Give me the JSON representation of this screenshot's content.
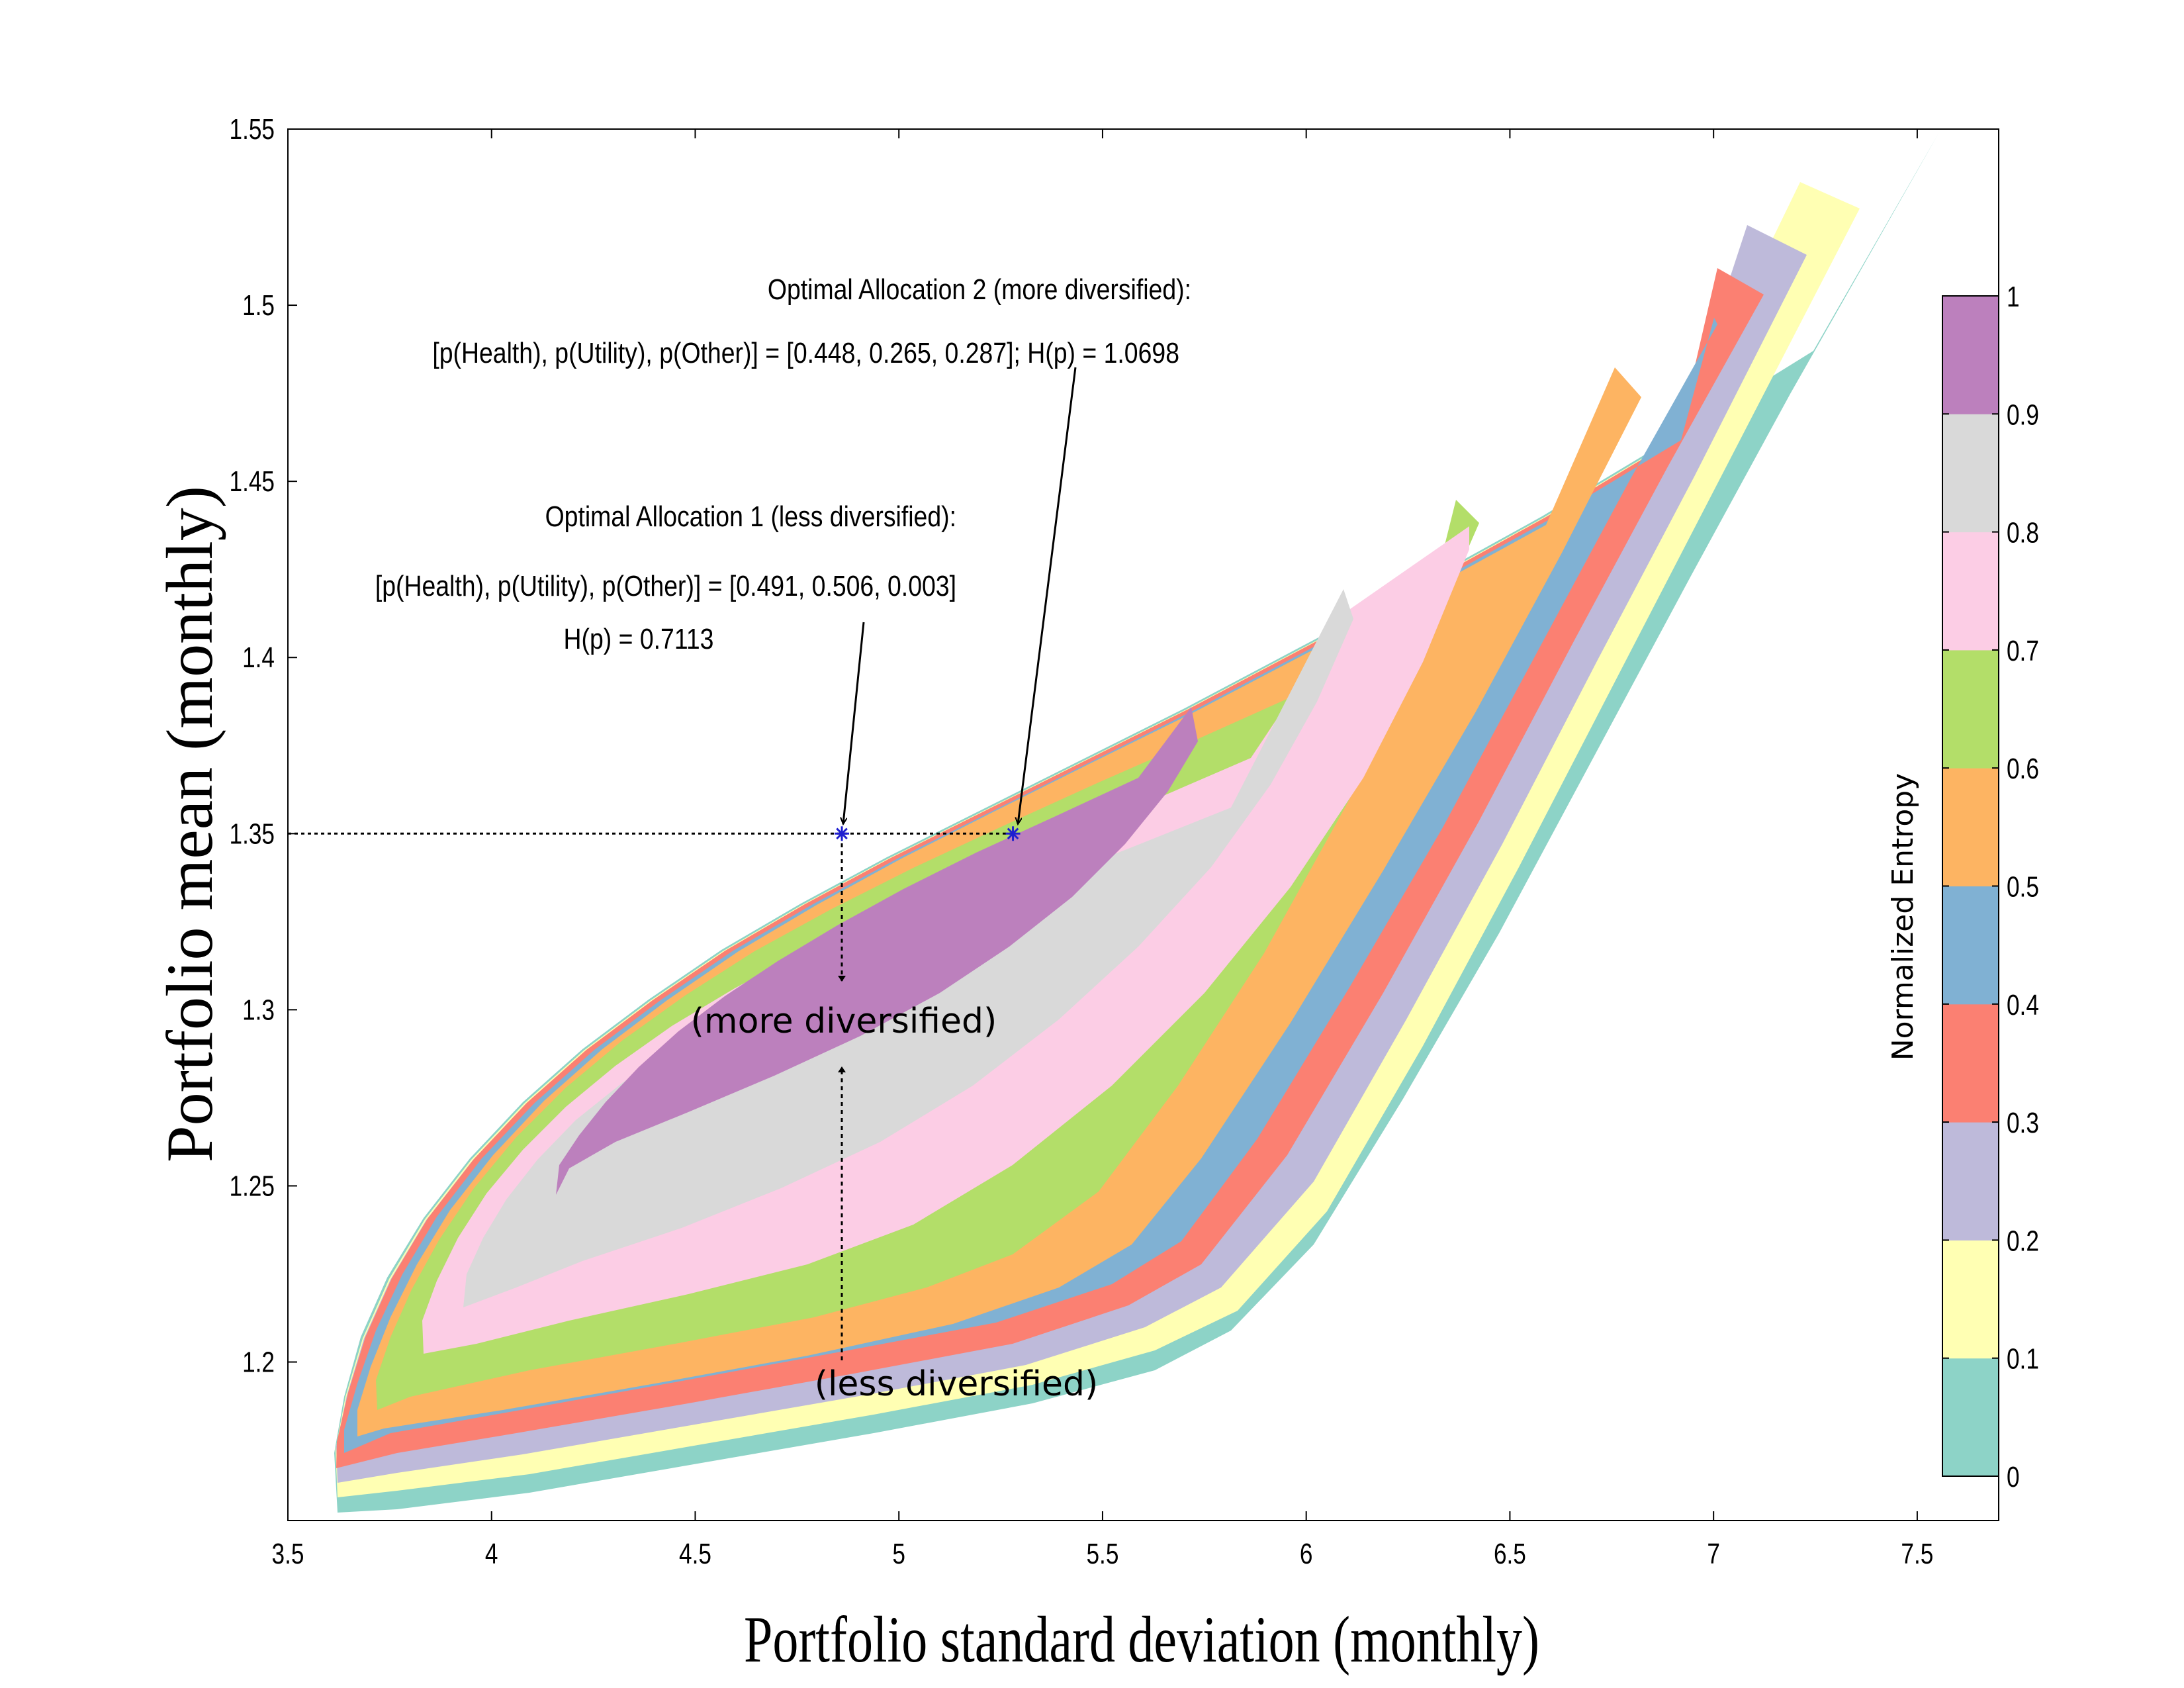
{
  "chart_data": {
    "type": "contour",
    "title": "",
    "xlabel": "Portfolio standard deviation (monthly)",
    "ylabel": "Portfolio mean (monthly)",
    "xlim": [
      3.5,
      7.7
    ],
    "ylim": [
      1.155,
      1.55
    ],
    "x_ticks": [
      "3.5",
      "4",
      "4.5",
      "5",
      "5.5",
      "6",
      "6.5",
      "7",
      "7.5"
    ],
    "y_ticks": [
      "1.2",
      "1.25",
      "1.3",
      "1.35",
      "1.4",
      "1.45",
      "1.5",
      "1.55"
    ],
    "colorbar": {
      "label": "Normalized Entropy",
      "ticks": [
        "0",
        "0.1",
        "0.2",
        "0.3",
        "0.4",
        "0.5",
        "0.6",
        "0.7",
        "0.8",
        "0.9",
        "1"
      ],
      "colors": [
        "#8dd3c7",
        "#ffffb3",
        "#bebada",
        "#fb8072",
        "#80b1d3",
        "#fdb462",
        "#b3de69",
        "#fccde5",
        "#d9d9d9",
        "#bc80bd"
      ]
    },
    "points": [
      {
        "name": "Optimal Allocation 1",
        "x": 4.86,
        "y": 1.35
      },
      {
        "name": "Optimal Allocation 2",
        "x": 5.28,
        "y": 1.35
      }
    ],
    "reference_line": {
      "y": 1.35,
      "x_from": 3.5,
      "x_to": 5.28
    },
    "annotations": {
      "alloc2_title": "Optimal Allocation 2 (more diversified):",
      "alloc2_detail": "[p(Health), p(Utility), p(Other)] = [0.448, 0.265, 0.287]; H(p) = 1.0698",
      "alloc1_title": "Optimal Allocation 1 (less diversified):",
      "alloc1_detail": "[p(Health), p(Utility), p(Other)] = [0.491, 0.506, 0.003]",
      "alloc1_entropy": "H(p) = 0.7113",
      "more_diversified": "(more diversified)",
      "less_diversified": "(less diversified)"
    }
  }
}
